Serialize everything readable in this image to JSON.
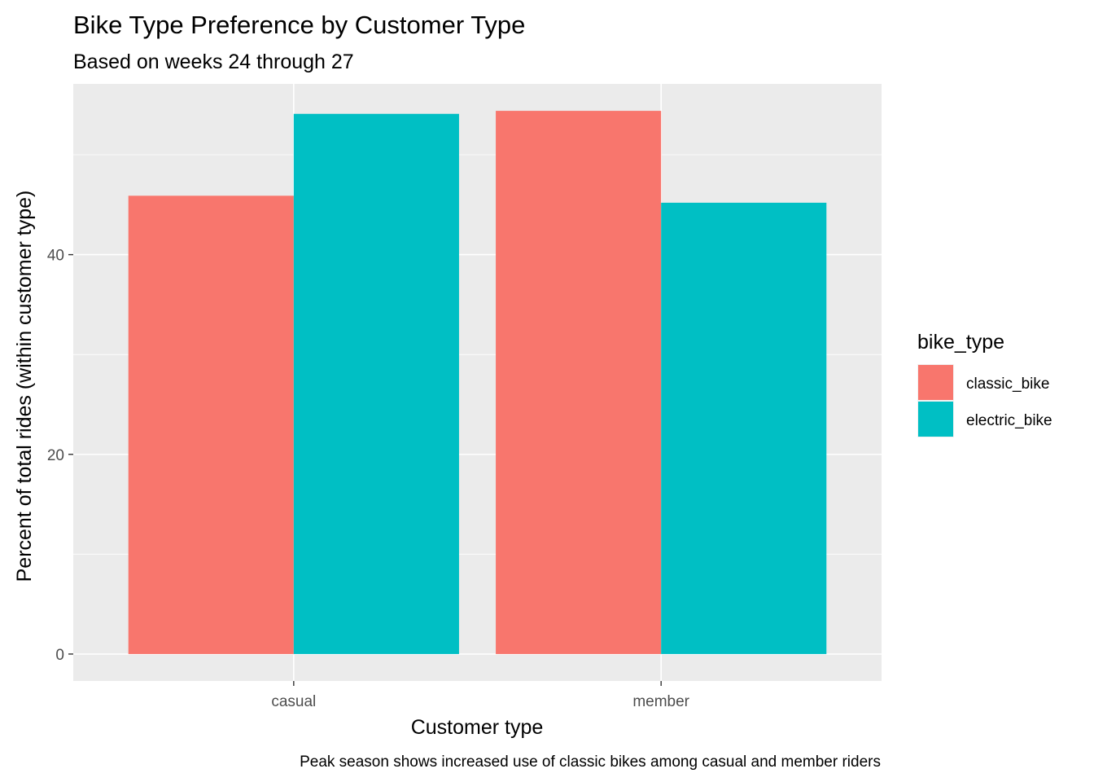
{
  "chart_data": {
    "type": "bar",
    "title": "Bike Type Preference by Customer Type",
    "subtitle": "Based on weeks 24 through 27",
    "xlabel": "Customer type",
    "ylabel": "Percent of total rides (within customer type)",
    "caption": "Peak season shows increased use of classic bikes among casual and member riders",
    "categories": [
      "casual",
      "member"
    ],
    "series": [
      {
        "name": "classic_bike",
        "color": "#F8766D",
        "values": [
          45.9,
          54.4
        ]
      },
      {
        "name": "electric_bike",
        "color": "#00BFC4",
        "values": [
          54.1,
          45.2
        ]
      }
    ],
    "ylim": [
      -2.7,
      57.1
    ],
    "yticks": [
      0,
      20,
      40
    ],
    "ytick_labels": [
      "0",
      "20",
      "40"
    ],
    "grid": true,
    "panel_background": "#EBEBEB",
    "legend": {
      "title": "bike_type",
      "placement": "right"
    }
  }
}
